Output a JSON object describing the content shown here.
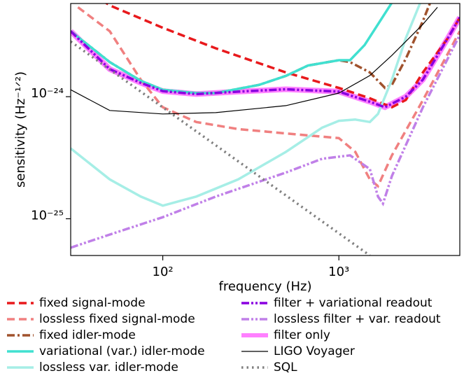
{
  "chart_data": {
    "type": "line",
    "xlabel": "frequency (Hz)",
    "ylabel": "sensitivity (Hz⁻¹ᐟ²)",
    "xscale": "log",
    "yscale": "log",
    "xlim": [
      30,
      4860
    ],
    "ylim": [
      5e-26,
      5.8e-24
    ],
    "xticks": [
      {
        "value": 100,
        "label": "10²"
      },
      {
        "value": 1000,
        "label": "10³"
      }
    ],
    "yticks": [
      {
        "value": 1e-25,
        "label": "10⁻²⁵"
      },
      {
        "value": 1e-24,
        "label": "10⁻²⁴"
      }
    ],
    "series": [
      {
        "name": "fixed signal-mode",
        "color": "#e8191c",
        "style": "dashed",
        "width": 3.5,
        "x": [
          45,
          50,
          100,
          200,
          500,
          1000,
          1500,
          2000,
          2400,
          3000,
          4160,
          4860
        ],
        "values": [
          6.2e-24,
          5.6e-24,
          3.67e-24,
          2.49e-24,
          1.58e-24,
          1.18e-24,
          9.7e-25,
          8.2e-25,
          9.4e-25,
          1.58e-24,
          3.02e-24,
          4.46e-24
        ]
      },
      {
        "name": "lossless fixed signal-mode",
        "color": "#f08080",
        "style": "dashed",
        "width": 3.5,
        "x": [
          33,
          50,
          75,
          100,
          155,
          268,
          500,
          1000,
          1240,
          1500,
          1667,
          2000,
          3000,
          4860
        ],
        "values": [
          5.4e-24,
          3.44e-24,
          1.38e-24,
          8.2e-25,
          6.2e-25,
          5.43e-25,
          5e-25,
          4.58e-25,
          3.53e-25,
          2.1e-25,
          1.85e-25,
          3.31e-25,
          9.37e-25,
          3.44e-24
        ]
      },
      {
        "name": "fixed idler-mode",
        "color": "#a0522d",
        "style": "dashdot",
        "width": 3.5,
        "x": [
          30,
          50,
          75,
          100,
          155,
          200,
          353,
          500,
          668,
          1000,
          1157,
          1500,
          1828,
          2000,
          2400,
          3000,
          3300
        ],
        "values": [
          3.44e-24,
          1.92e-24,
          1.35e-24,
          1.14e-24,
          1.07e-24,
          1.07e-24,
          1.25e-24,
          1.48e-24,
          1.8e-24,
          1.99e-24,
          1.92e-24,
          1.58e-24,
          1.18e-24,
          1.25e-24,
          2.05e-24,
          4.17e-24,
          5.9e-24
        ]
      },
      {
        "name": "variational (var.) idler-mode",
        "color": "#40e0d0",
        "style": "solid",
        "width": 3.5,
        "x": [
          30,
          50,
          75,
          100,
          155,
          200,
          353,
          500,
          668,
          1000,
          1157,
          1400,
          1667,
          2000
        ],
        "values": [
          3.44e-24,
          1.92e-24,
          1.35e-24,
          1.14e-24,
          1.07e-24,
          1.07e-24,
          1.25e-24,
          1.48e-24,
          1.8e-24,
          1.99e-24,
          1.99e-24,
          2.65e-24,
          3.92e-24,
          5.9e-24
        ]
      },
      {
        "name": "lossless var. idler-mode",
        "color": "#a6eee6",
        "style": "solid",
        "width": 3.5,
        "x": [
          30,
          50,
          75,
          100,
          155,
          268,
          500,
          803,
          1000,
          1240,
          1500,
          1667,
          2000,
          2400,
          2900
        ],
        "values": [
          3.77e-25,
          2.1e-25,
          1.52e-25,
          1.28e-25,
          1.52e-25,
          2.1e-25,
          3.53e-25,
          5.57e-25,
          6.34e-25,
          6.5e-25,
          6.2e-25,
          7.22e-25,
          1.38e-24,
          3.02e-24,
          5.9e-24
        ]
      },
      {
        "name": "filter + variational readout",
        "color": "#8a00e0",
        "style": "dashdotdot",
        "width": 3.5,
        "x": [
          30,
          50,
          75,
          100,
          155,
          268,
          500,
          1000,
          1500,
          1828,
          2400,
          3000,
          4160,
          4860
        ],
        "values": [
          3.44e-24,
          1.68e-24,
          1.3e-24,
          1.11e-24,
          1.05e-24,
          1.1e-24,
          1.15e-24,
          1.1e-24,
          9.1e-25,
          8.2e-25,
          1e-24,
          1.38e-24,
          3.02e-24,
          4.46e-24
        ]
      },
      {
        "name": "lossless filter + var. readout",
        "color": "#c080e8",
        "style": "dashdotdot",
        "width": 3.5,
        "x": [
          30,
          50,
          100,
          200,
          500,
          803,
          1157,
          1500,
          1667,
          1780,
          2000,
          3000,
          4860
        ],
        "values": [
          5.8e-26,
          7.42e-26,
          1.03e-25,
          1.52e-25,
          2.39e-25,
          3.1e-25,
          3.31e-25,
          2.55e-25,
          1.52e-25,
          1.33e-25,
          2.24e-25,
          8.2e-25,
          3.2e-24
        ]
      },
      {
        "name": "filter only",
        "color": "#ff80ff",
        "style": "solid",
        "width": 8,
        "x": [
          30,
          50,
          75,
          100,
          155,
          268,
          500,
          1000,
          1500,
          1828,
          2400,
          3000,
          4160,
          4860
        ],
        "values": [
          3.44e-24,
          1.68e-24,
          1.3e-24,
          1.11e-24,
          1.05e-24,
          1.1e-24,
          1.15e-24,
          1.1e-24,
          9.1e-25,
          8.2e-25,
          1e-24,
          1.38e-24,
          3.02e-24,
          4.46e-24
        ]
      },
      {
        "name": "LIGO Voyager",
        "color": "#000000",
        "style": "solid",
        "width": 1.2,
        "x": [
          30,
          50,
          100,
          200,
          500,
          1000,
          1500,
          2000,
          3000,
          3630
        ],
        "values": [
          1.14e-24,
          7.71e-25,
          7.22e-25,
          7.4e-25,
          8.45e-25,
          1.07e-24,
          1.49e-24,
          2.18e-24,
          3.92e-24,
          5.4e-24
        ]
      },
      {
        "name": "SQL",
        "color": "#808080",
        "style": "dotted",
        "width": 3.5,
        "x": [
          30,
          1500
        ],
        "values": [
          2.83e-24,
          5e-26
        ]
      }
    ]
  }
}
